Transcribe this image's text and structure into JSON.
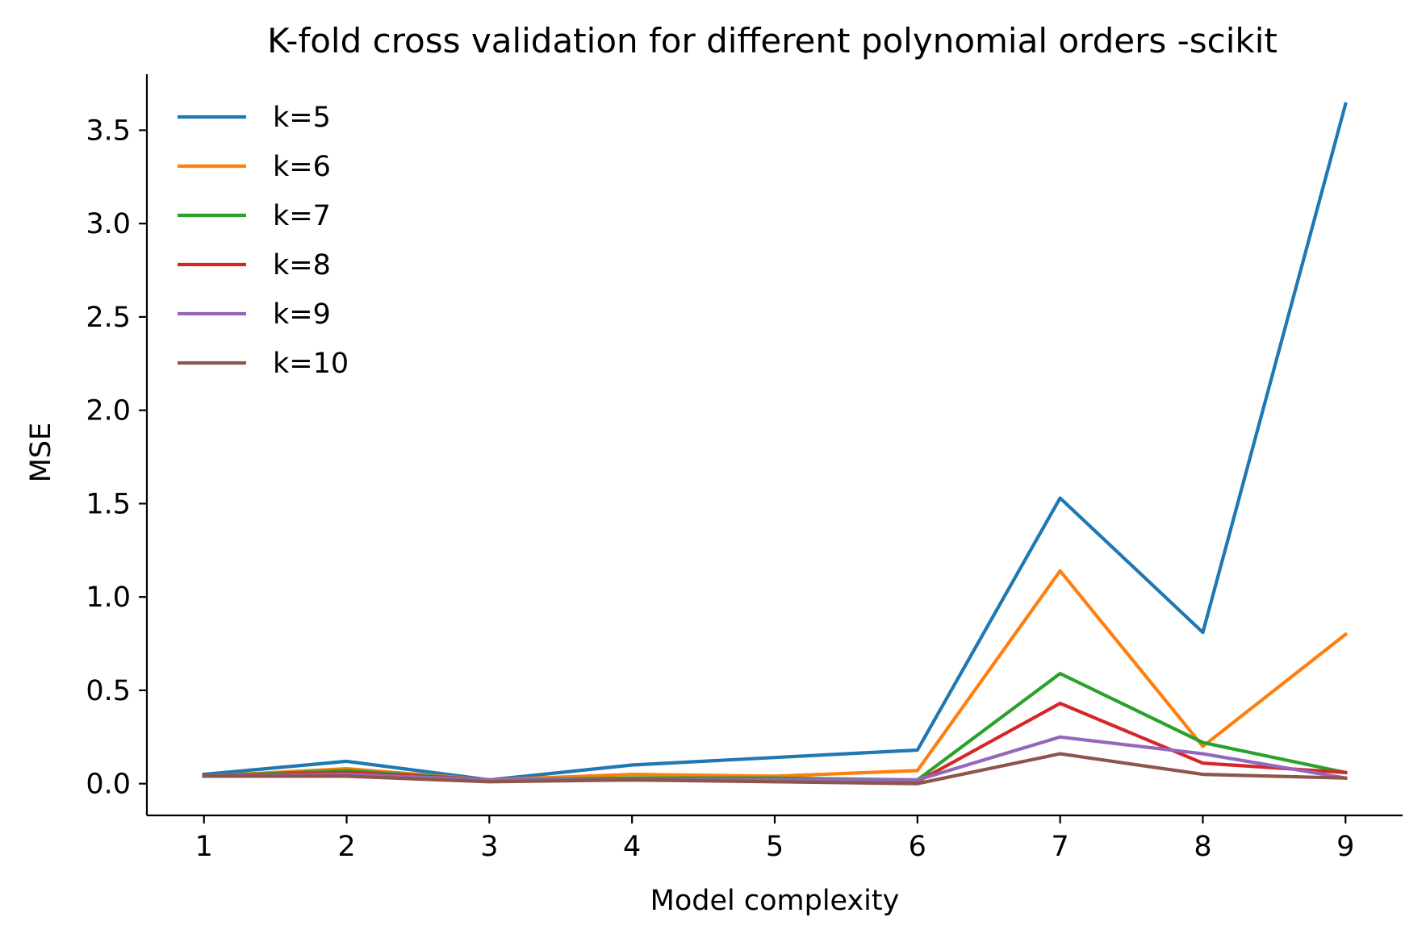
{
  "chart_data": {
    "type": "line",
    "title": "K-fold cross validation for different polynomial orders -scikit",
    "xlabel": "Model complexity",
    "ylabel": "MSE",
    "x": [
      1,
      2,
      3,
      4,
      5,
      6,
      7,
      8,
      9
    ],
    "xticks": [
      "1",
      "2",
      "3",
      "4",
      "5",
      "6",
      "7",
      "8",
      "9"
    ],
    "yticks": [
      "0.0",
      "0.5",
      "1.0",
      "1.5",
      "2.0",
      "2.5",
      "3.0",
      "3.5"
    ],
    "xlim": [
      0.6,
      9.4
    ],
    "ylim": [
      -0.17,
      3.8
    ],
    "grid": false,
    "legend_position": "top-left",
    "series": [
      {
        "name": "k=5",
        "color": "#1f77b4",
        "values": [
          0.05,
          0.12,
          0.02,
          0.1,
          0.14,
          0.18,
          1.53,
          0.81,
          3.64
        ]
      },
      {
        "name": "k=6",
        "color": "#ff7f0e",
        "values": [
          0.04,
          0.08,
          0.02,
          0.05,
          0.04,
          0.07,
          1.14,
          0.2,
          0.8
        ]
      },
      {
        "name": "k=7",
        "color": "#2ca02c",
        "values": [
          0.04,
          0.07,
          0.02,
          0.03,
          0.03,
          0.02,
          0.59,
          0.22,
          0.06
        ]
      },
      {
        "name": "k=8",
        "color": "#d62728",
        "values": [
          0.04,
          0.06,
          0.02,
          0.02,
          0.02,
          0.01,
          0.43,
          0.11,
          0.06
        ]
      },
      {
        "name": "k=9",
        "color": "#9467bd",
        "values": [
          0.04,
          0.05,
          0.02,
          0.02,
          0.02,
          0.02,
          0.25,
          0.16,
          0.03
        ]
      },
      {
        "name": "k=10",
        "color": "#8c564b",
        "values": [
          0.04,
          0.04,
          0.01,
          0.02,
          0.01,
          0.0,
          0.16,
          0.05,
          0.03
        ]
      }
    ]
  }
}
